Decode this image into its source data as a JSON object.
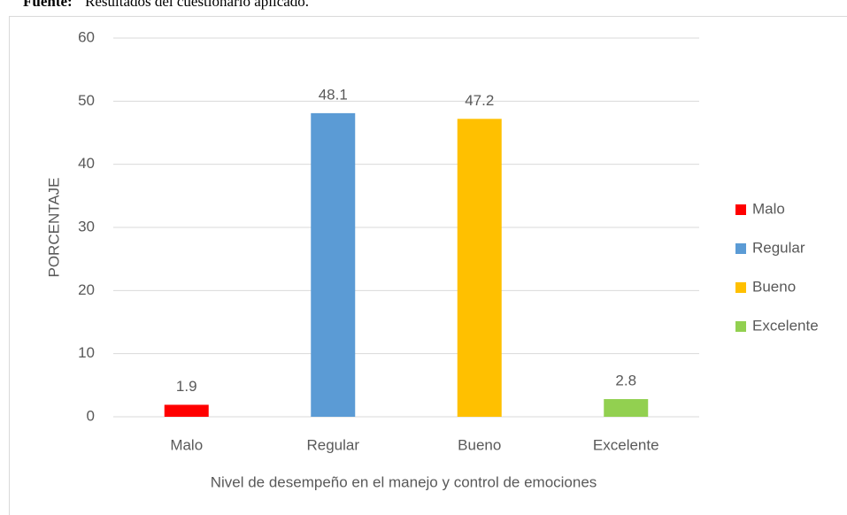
{
  "source_label": "Fuente:",
  "source_text": "Resultados del cuestionario aplicado.",
  "chart_data": {
    "type": "bar",
    "x_label": "Nivel de desempeño en el manejo y control de emociones",
    "y_label": "PORCENTAJE",
    "categories": [
      "Malo",
      "Regular",
      "Bueno",
      "Excelente"
    ],
    "values": [
      1.9,
      48.1,
      47.2,
      2.8
    ],
    "colors": [
      "#ff0000",
      "#5b9bd5",
      "#ffc000",
      "#92d050"
    ],
    "ylim": [
      0,
      60
    ],
    "yticks": [
      0,
      10,
      20,
      30,
      40,
      50,
      60
    ],
    "grid": true,
    "legend": "right"
  }
}
